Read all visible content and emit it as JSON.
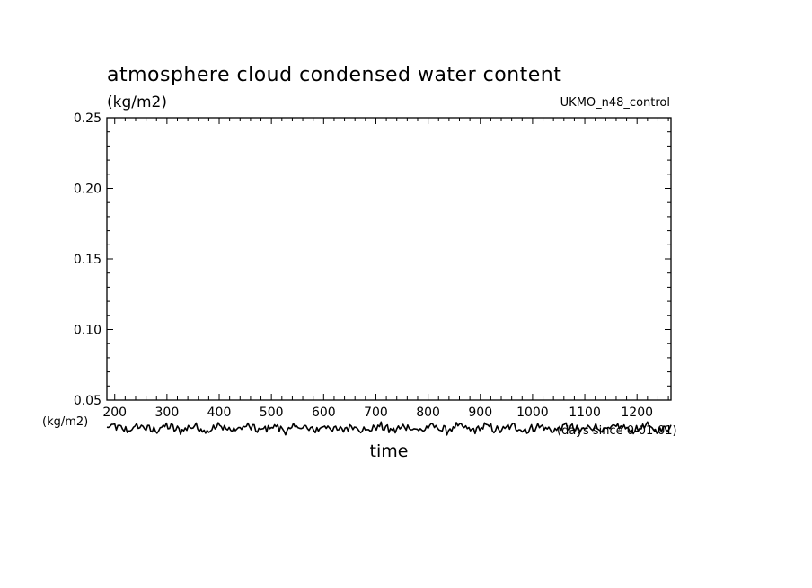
{
  "chart_data": {
    "type": "line",
    "title": "atmosphere cloud condensed water content",
    "units_label": "(kg/m2)",
    "model_label": "UKMO_n48_control",
    "xlabel": "time",
    "x_units_label": "(days since 0-01-01)",
    "y_left_unit": "(kg/m2)",
    "xlim": [
      185,
      1265
    ],
    "ylim": [
      0.05,
      0.25
    ],
    "x_ticks": [
      200,
      300,
      400,
      500,
      600,
      700,
      800,
      900,
      1000,
      1100,
      1200
    ],
    "x_tick_labels": [
      "200",
      "300",
      "400",
      "500",
      "600",
      "700",
      "800",
      "900",
      "1000",
      "1100",
      "1200"
    ],
    "y_ticks": [
      0.05,
      0.1,
      0.15,
      0.2,
      0.25
    ],
    "y_tick_labels": [
      "0.05",
      "0.10",
      "0.15",
      "0.20",
      "0.25"
    ],
    "grid": false,
    "series": [
      {
        "x_start": 185,
        "x_end": 1265,
        "y_level": 0.03,
        "y_amplitude": 0.0035,
        "points": 360
      }
    ]
  }
}
